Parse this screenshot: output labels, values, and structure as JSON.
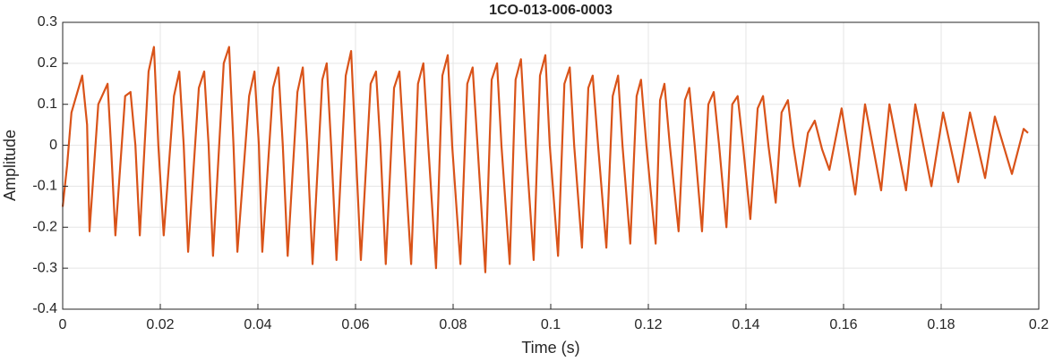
{
  "chart_data": {
    "type": "line",
    "title": "1CO-013-006-0003",
    "x_label": "Time (s)",
    "y_label": "Amplitude",
    "x": [
      0,
      0.0009,
      0.0018,
      0.004,
      0.005,
      0.0055,
      0.0073,
      0.0092,
      0.0099,
      0.0108,
      0.0128,
      0.0139,
      0.0149,
      0.0158,
      0.0176,
      0.0187,
      0.0196,
      0.0207,
      0.0228,
      0.0239,
      0.0248,
      0.0257,
      0.0279,
      0.029,
      0.0299,
      0.0308,
      0.033,
      0.0341,
      0.035,
      0.0358,
      0.0382,
      0.0393,
      0.0402,
      0.0409,
      0.0431,
      0.0442,
      0.0451,
      0.0461,
      0.0481,
      0.0492,
      0.0501,
      0.0512,
      0.0532,
      0.0541,
      0.055,
      0.0561,
      0.058,
      0.0591,
      0.06,
      0.0611,
      0.0631,
      0.0642,
      0.0651,
      0.0662,
      0.0679,
      0.069,
      0.0699,
      0.0714,
      0.0728,
      0.0739,
      0.0749,
      0.0765,
      0.0778,
      0.0789,
      0.0798,
      0.0815,
      0.0829,
      0.084,
      0.085,
      0.0866,
      0.0879,
      0.089,
      0.0899,
      0.0916,
      0.0928,
      0.0939,
      0.0949,
      0.0965,
      0.0978,
      0.0989,
      0.0998,
      0.1015,
      0.1028,
      0.1039,
      0.1048,
      0.1064,
      0.1077,
      0.1086,
      0.1097,
      0.1114,
      0.1127,
      0.1138,
      0.1147,
      0.1163,
      0.1176,
      0.1185,
      0.1196,
      0.1215,
      0.1224,
      0.1233,
      0.1244,
      0.1262,
      0.1275,
      0.1284,
      0.1295,
      0.131,
      0.1323,
      0.1334,
      0.1345,
      0.136,
      0.1372,
      0.1383,
      0.1394,
      0.1409,
      0.1424,
      0.1435,
      0.1446,
      0.1461,
      0.1473,
      0.1486,
      0.1497,
      0.151,
      0.1527,
      0.1541,
      0.1556,
      0.1571,
      0.1596,
      0.1624,
      0.1644,
      0.1677,
      0.1694,
      0.1728,
      0.1747,
      0.178,
      0.1804,
      0.1835,
      0.1859,
      0.189,
      0.191,
      0.1945,
      0.1969,
      0.1978
    ],
    "series": [
      {
        "name": "Amplitude",
        "color": "#D95319",
        "values": [
          -0.15,
          -0.05,
          0.08,
          0.17,
          0.05,
          -0.21,
          0.1,
          0.15,
          0.0,
          -0.22,
          0.12,
          0.13,
          0.0,
          -0.22,
          0.18,
          0.24,
          0.0,
          -0.22,
          0.12,
          0.18,
          0.0,
          -0.26,
          0.14,
          0.18,
          0.0,
          -0.27,
          0.2,
          0.24,
          0.0,
          -0.26,
          0.12,
          0.18,
          0.0,
          -0.26,
          0.14,
          0.19,
          0.0,
          -0.27,
          0.13,
          0.19,
          0.0,
          -0.29,
          0.16,
          0.2,
          0.0,
          -0.28,
          0.17,
          0.23,
          0.0,
          -0.28,
          0.15,
          0.18,
          0.0,
          -0.29,
          0.14,
          0.18,
          0.0,
          -0.29,
          0.15,
          0.2,
          0.0,
          -0.3,
          0.17,
          0.22,
          0.0,
          -0.29,
          0.15,
          0.19,
          0.0,
          -0.31,
          0.16,
          0.2,
          0.0,
          -0.29,
          0.16,
          0.21,
          0.0,
          -0.28,
          0.17,
          0.22,
          0.0,
          -0.27,
          0.15,
          0.19,
          0.0,
          -0.25,
          0.14,
          0.17,
          0.0,
          -0.25,
          0.12,
          0.17,
          0.0,
          -0.24,
          0.12,
          0.16,
          0.0,
          -0.24,
          0.11,
          0.15,
          0.0,
          -0.21,
          0.11,
          0.14,
          0.0,
          -0.21,
          0.1,
          0.13,
          0.0,
          -0.2,
          0.1,
          0.12,
          0.0,
          -0.18,
          0.09,
          0.12,
          0.0,
          -0.14,
          0.08,
          0.11,
          0.0,
          -0.1,
          0.03,
          0.06,
          -0.01,
          -0.06,
          0.09,
          -0.12,
          0.1,
          -0.11,
          0.1,
          -0.11,
          0.1,
          -0.1,
          0.08,
          -0.09,
          0.08,
          -0.08,
          0.07,
          -0.07,
          0.04,
          0.03
        ]
      }
    ],
    "xlim": [
      0,
      0.2
    ],
    "xticks": [
      0,
      0.02,
      0.04,
      0.06,
      0.08,
      0.1,
      0.12,
      0.14,
      0.16,
      0.18,
      0.2
    ],
    "ylim": [
      -0.4,
      0.3
    ],
    "yticks": [
      -0.4,
      -0.3,
      -0.2,
      -0.1,
      0,
      0.1,
      0.2,
      0.3
    ],
    "grid": true
  }
}
